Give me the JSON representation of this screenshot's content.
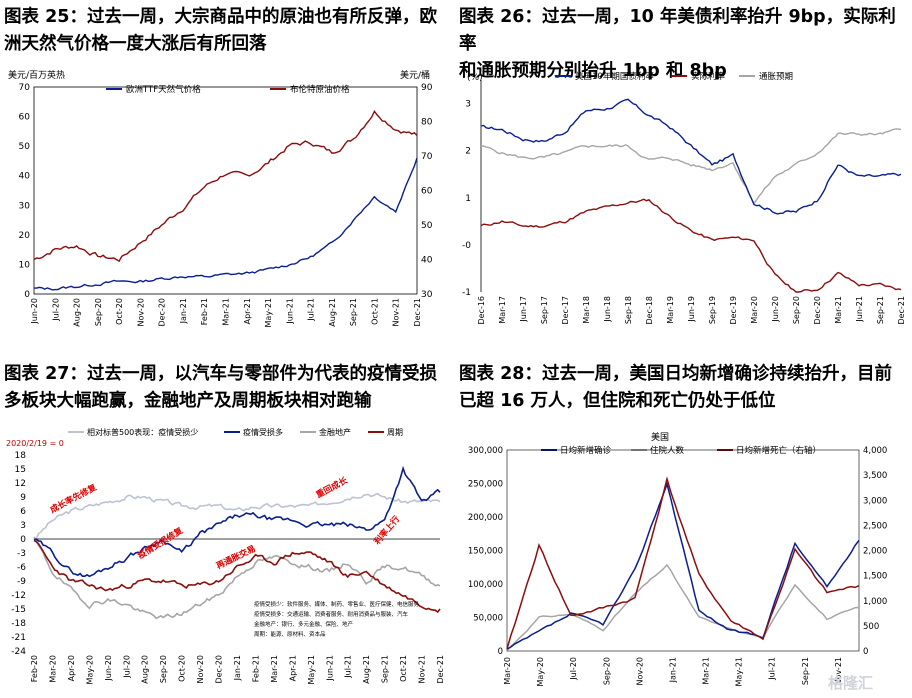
{
  "watermark": "格隆汇",
  "charts": [
    {
      "title_l1": "图表 25：过去一周，大宗商品中的原油也有所反弹，欧",
      "title_l2": "洲天然气价格一度大涨后有所回落",
      "left_unit": "美元/百万英热",
      "right_unit": "美元/桶",
      "y_ticks": [
        "0",
        "10",
        "20",
        "30",
        "40",
        "50",
        "60",
        "70"
      ],
      "y2_ticks": [
        "30",
        "40",
        "50",
        "60",
        "70",
        "80",
        "90"
      ],
      "x_ticks": [
        "Jun-20",
        "Jul-20",
        "Aug-20",
        "Sep-20",
        "Oct-20",
        "Nov-20",
        "Dec-20",
        "Jan-21",
        "Feb-21",
        "Mar-21",
        "Apr-21",
        "May-21",
        "Jun-21",
        "Jul-21",
        "Aug-21",
        "Sep-21",
        "Oct-21",
        "Nov-21",
        "Dec-21"
      ],
      "legend": [
        "欧洲TTF天然气价格",
        "布伦特原油价格"
      ]
    },
    {
      "title_l1": "图表 26：过去一周，10 年美债利率抬升 9bp，实际利率",
      "title_l2": "和通胀预期分别抬升 1bp 和 8bp",
      "unit": "(%)",
      "y_ticks": [
        "-1",
        "-0",
        "1",
        "2",
        "3"
      ],
      "x_ticks": [
        "Dec-16",
        "Mar-17",
        "Jun-17",
        "Sep-17",
        "Dec-17",
        "Mar-18",
        "Jun-18",
        "Sep-18",
        "Dec-18",
        "Mar-19",
        "Jun-19",
        "Sep-19",
        "Dec-19",
        "Mar-20",
        "Jun-20",
        "Sep-20",
        "Dec-20",
        "Mar-21",
        "Jun-21",
        "Sep-21",
        "Dec-21"
      ],
      "legend": [
        "美国10年期国债利率",
        "实际利率",
        "通胀预期"
      ]
    },
    {
      "title_l1": "图表 27：过去一周，以汽车与零部件为代表的疫情受损",
      "title_l2": "多板块大幅跑赢，金融地产及周期板块相对跑输",
      "base_note": "2020/2/19 = 0",
      "y_ticks": [
        "18",
        "15",
        "12",
        "9",
        "6",
        "3",
        "0",
        "-3",
        "-6",
        "-9",
        "-12",
        "-15",
        "-18",
        "-21",
        "-24"
      ],
      "x_ticks": [
        "Feb-20",
        "Mar-20",
        "Apr-20",
        "May-20",
        "Jun-20",
        "Jul-20",
        "Aug-20",
        "Sep-20",
        "Oct-20",
        "Nov-20",
        "Dec-20",
        "Jan-21",
        "Feb-21",
        "Mar-21",
        "Apr-21",
        "May-21",
        "Jun-21",
        "Jul-21",
        "Aug-21",
        "Sep-21",
        "Oct-21",
        "Nov-21",
        "Dec-21"
      ],
      "legend": [
        "相对标普500表现：疫情受损少",
        "疫情受损多",
        "金融地产",
        "周期"
      ],
      "annotations": [
        "成长率先修复",
        "疫情受损修复",
        "再通胀交易",
        "重回成长",
        "利率上行"
      ],
      "notes": [
        "疫情受损少：软件服务、媒体、制药、零售业、医疗保健、电信服务",
        "疫情受损多：交通运输、消费者服务、耐用消费品与服装、汽车",
        "金融地产：银行、多元金融、保险、地产",
        "周期：能源、原材料、资本品"
      ]
    },
    {
      "title_l1": "图表 28：过去一周，美国日均新增确诊持续抬升，目前",
      "title_l2": "已超 16 万人，但住院和死亡仍处于低位",
      "chart_title": "美国",
      "y_ticks": [
        "0",
        "50,000",
        "100,000",
        "150,000",
        "200,000",
        "250,000",
        "300,000"
      ],
      "y2_ticks": [
        "0",
        "500",
        "1,000",
        "1,500",
        "2,000",
        "2,500",
        "3,000",
        "3,500",
        "4,000"
      ],
      "x_ticks": [
        "Mar-20",
        "May-20",
        "Jul-20",
        "Sep-20",
        "Nov-20",
        "Jan-21",
        "Mar-21",
        "May-21",
        "Jul-21",
        "Sep-21",
        "Nov-21"
      ],
      "legend": [
        "日均新增确诊",
        "住院人数",
        "日均新增死亡（右轴）"
      ]
    }
  ],
  "chart_data": [
    {
      "type": "line",
      "x": [
        "2020-06",
        "2020-07",
        "2020-08",
        "2020-09",
        "2020-10",
        "2020-11",
        "2020-12",
        "2021-01",
        "2021-02",
        "2021-03",
        "2021-04",
        "2021-05",
        "2021-06",
        "2021-07",
        "2021-08",
        "2021-09",
        "2021-10",
        "2021-11",
        "2021-12"
      ],
      "ylim": [
        0,
        70
      ],
      "y2lim": [
        30,
        90
      ],
      "series": [
        {
          "name": "欧洲TTF天然气价格",
          "axis": "left",
          "color": "#0a1f8f",
          "values": [
            1.8,
            1.8,
            2.5,
            3.5,
            4.2,
            4.2,
            5.2,
            6.0,
            5.8,
            6.5,
            7.0,
            8.2,
            10.0,
            12.5,
            17.0,
            25.0,
            33.0,
            28.0,
            46.0
          ]
        },
        {
          "name": "布伦特原油价格",
          "axis": "right",
          "color": "#8b0d0d",
          "values": [
            40,
            43,
            44,
            41,
            40,
            45,
            50,
            55,
            61,
            65,
            64,
            68,
            73,
            74,
            71,
            75,
            83,
            78,
            76
          ]
        }
      ]
    },
    {
      "type": "line",
      "x": [
        "2016-12",
        "2017-03",
        "2017-06",
        "2017-09",
        "2017-12",
        "2018-03",
        "2018-06",
        "2018-09",
        "2018-12",
        "2019-03",
        "2019-06",
        "2019-09",
        "2019-12",
        "2020-03",
        "2020-06",
        "2020-09",
        "2020-12",
        "2021-03",
        "2021-06",
        "2021-09",
        "2021-12"
      ],
      "ylim": [
        -1,
        3.5
      ],
      "series": [
        {
          "name": "美国10年期国债利率",
          "color": "#0a1f8f",
          "values": [
            2.5,
            2.45,
            2.25,
            2.2,
            2.4,
            2.85,
            2.9,
            3.05,
            2.75,
            2.5,
            2.1,
            1.7,
            1.9,
            0.9,
            0.7,
            0.7,
            0.95,
            1.7,
            1.45,
            1.45,
            1.5
          ]
        },
        {
          "name": "实际利率",
          "color": "#8b0d0d",
          "values": [
            0.4,
            0.5,
            0.4,
            0.4,
            0.5,
            0.7,
            0.8,
            0.9,
            0.95,
            0.6,
            0.3,
            0.1,
            0.15,
            0.1,
            -0.65,
            -1.0,
            -0.95,
            -0.6,
            -0.85,
            -0.85,
            -0.95
          ]
        },
        {
          "name": "通胀预期",
          "color": "#a6a6a6",
          "values": [
            2.1,
            1.95,
            1.85,
            1.85,
            1.95,
            2.1,
            2.1,
            2.1,
            1.8,
            1.85,
            1.7,
            1.6,
            1.75,
            0.9,
            1.45,
            1.7,
            1.95,
            2.35,
            2.35,
            2.35,
            2.45
          ]
        }
      ]
    },
    {
      "type": "line",
      "x": [
        "2020-02",
        "2020-03",
        "2020-04",
        "2020-05",
        "2020-06",
        "2020-07",
        "2020-08",
        "2020-09",
        "2020-10",
        "2020-11",
        "2020-12",
        "2021-01",
        "2021-02",
        "2021-03",
        "2021-04",
        "2021-05",
        "2021-06",
        "2021-07",
        "2021-08",
        "2021-09",
        "2021-10",
        "2021-11",
        "2021-12"
      ],
      "ylim": [
        -24,
        18
      ],
      "series": [
        {
          "name": "相对标普500表现：疫情受损少",
          "color": "#bdc3d3",
          "values": [
            0,
            4,
            6,
            7,
            8,
            9,
            9,
            8,
            7,
            7,
            7,
            6,
            7,
            7,
            7,
            7,
            8,
            9,
            10,
            9,
            8,
            8,
            8
          ]
        },
        {
          "name": "疫情受损多",
          "color": "#0a1f8f",
          "values": [
            0,
            -3,
            -7,
            -8,
            -6,
            -4,
            -2,
            0,
            -3,
            1,
            3,
            5,
            5,
            4,
            4,
            3,
            3,
            3,
            2,
            4,
            15,
            8,
            10
          ]
        },
        {
          "name": "金融地产",
          "color": "#a6a6a6",
          "values": [
            0,
            -7,
            -11,
            -14,
            -13,
            -14,
            -16,
            -17,
            -16,
            -14,
            -12,
            -8,
            -5,
            -4,
            -5,
            -6,
            -7,
            -5,
            -9,
            -6,
            -6,
            -8,
            -10
          ]
        },
        {
          "name": "周期",
          "color": "#8b0d0d",
          "values": [
            0,
            -6,
            -9,
            -10,
            -11,
            -10,
            -9,
            -9,
            -10,
            -10,
            -9,
            -6,
            -4,
            -5,
            -3,
            -3,
            -5,
            -8,
            -7,
            -10,
            -12,
            -14,
            -15
          ]
        }
      ]
    },
    {
      "type": "line",
      "x": [
        "2020-03",
        "2020-05",
        "2020-07",
        "2020-09",
        "2020-11",
        "2021-01",
        "2021-03",
        "2021-05",
        "2021-07",
        "2021-09",
        "2021-11",
        "2021-12"
      ],
      "ylim": [
        0,
        300000
      ],
      "y2lim": [
        0,
        4000
      ],
      "series": [
        {
          "name": "日均新增确诊",
          "axis": "left",
          "color": "#0a1f8f",
          "values": [
            2000,
            28000,
            55000,
            40000,
            120000,
            250000,
            60000,
            30000,
            22000,
            160000,
            95000,
            165000
          ]
        },
        {
          "name": "住院人数",
          "axis": "left",
          "color": "#a6a6a6",
          "values": [
            1000,
            50000,
            55000,
            32000,
            85000,
            128000,
            50000,
            32000,
            20000,
            100000,
            48000,
            65000
          ]
        },
        {
          "name": "日均新增死亡（右轴）",
          "axis": "right",
          "color": "#8b0d0d",
          "values": [
            20,
            2100,
            700,
            850,
            1050,
            3400,
            1500,
            600,
            250,
            2000,
            1150,
            1300
          ]
        }
      ]
    }
  ]
}
